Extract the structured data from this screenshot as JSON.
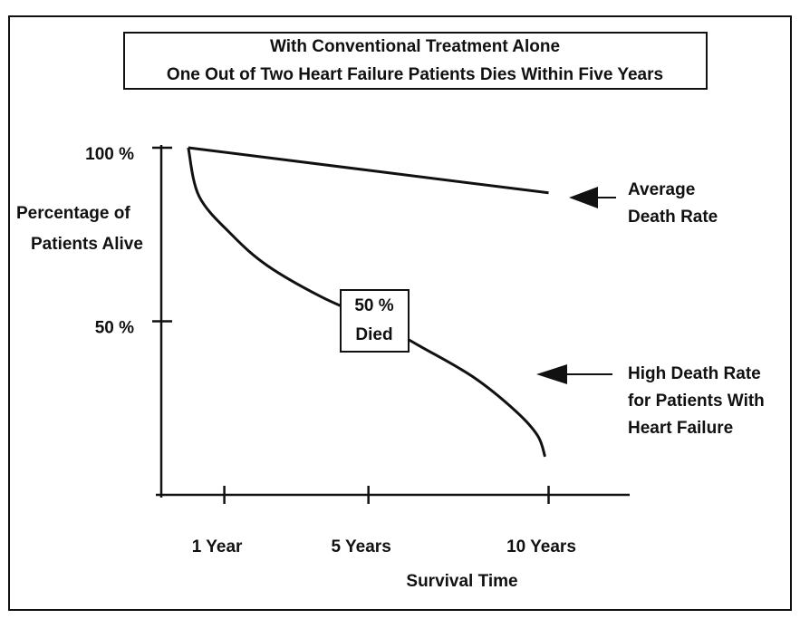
{
  "chart_data": {
    "type": "line",
    "title": "With Conventional Treatment Alone",
    "subtitle": "One Out of Two Heart Failure Patients Dies Within Five Years",
    "y_label": [
      "Percentage of",
      "Patients Alive"
    ],
    "x_label": "Survival Time",
    "xlim": [
      -0.75,
      12.25
    ],
    "xticks": [
      {
        "value": 1,
        "label": "1 Year"
      },
      {
        "value": 5,
        "label": "5 Years"
      },
      {
        "value": 10,
        "label": "10 Years"
      }
    ],
    "ylim": [
      0,
      100
    ],
    "yticks": [
      {
        "value": 100,
        "label": "100 %"
      },
      {
        "value": 50,
        "label": "50 %"
      }
    ],
    "series": [
      {
        "name": [
          "Average",
          "Death Rate"
        ],
        "color": "#111111",
        "x": [
          0,
          10
        ],
        "values": [
          100,
          87
        ]
      },
      {
        "name": [
          "High Death Rate",
          "for Patients With",
          "Heart Failure"
        ],
        "color": "#111111",
        "x": [
          0,
          0.3,
          1.2,
          2.2,
          3.7,
          5.2,
          6.4,
          7.9,
          9.1,
          9.7,
          9.9
        ],
        "values": [
          100,
          86,
          75,
          66,
          57,
          50,
          43,
          34,
          24,
          17,
          11
        ]
      }
    ],
    "annotation": [
      "50 %",
      "Died"
    ]
  }
}
